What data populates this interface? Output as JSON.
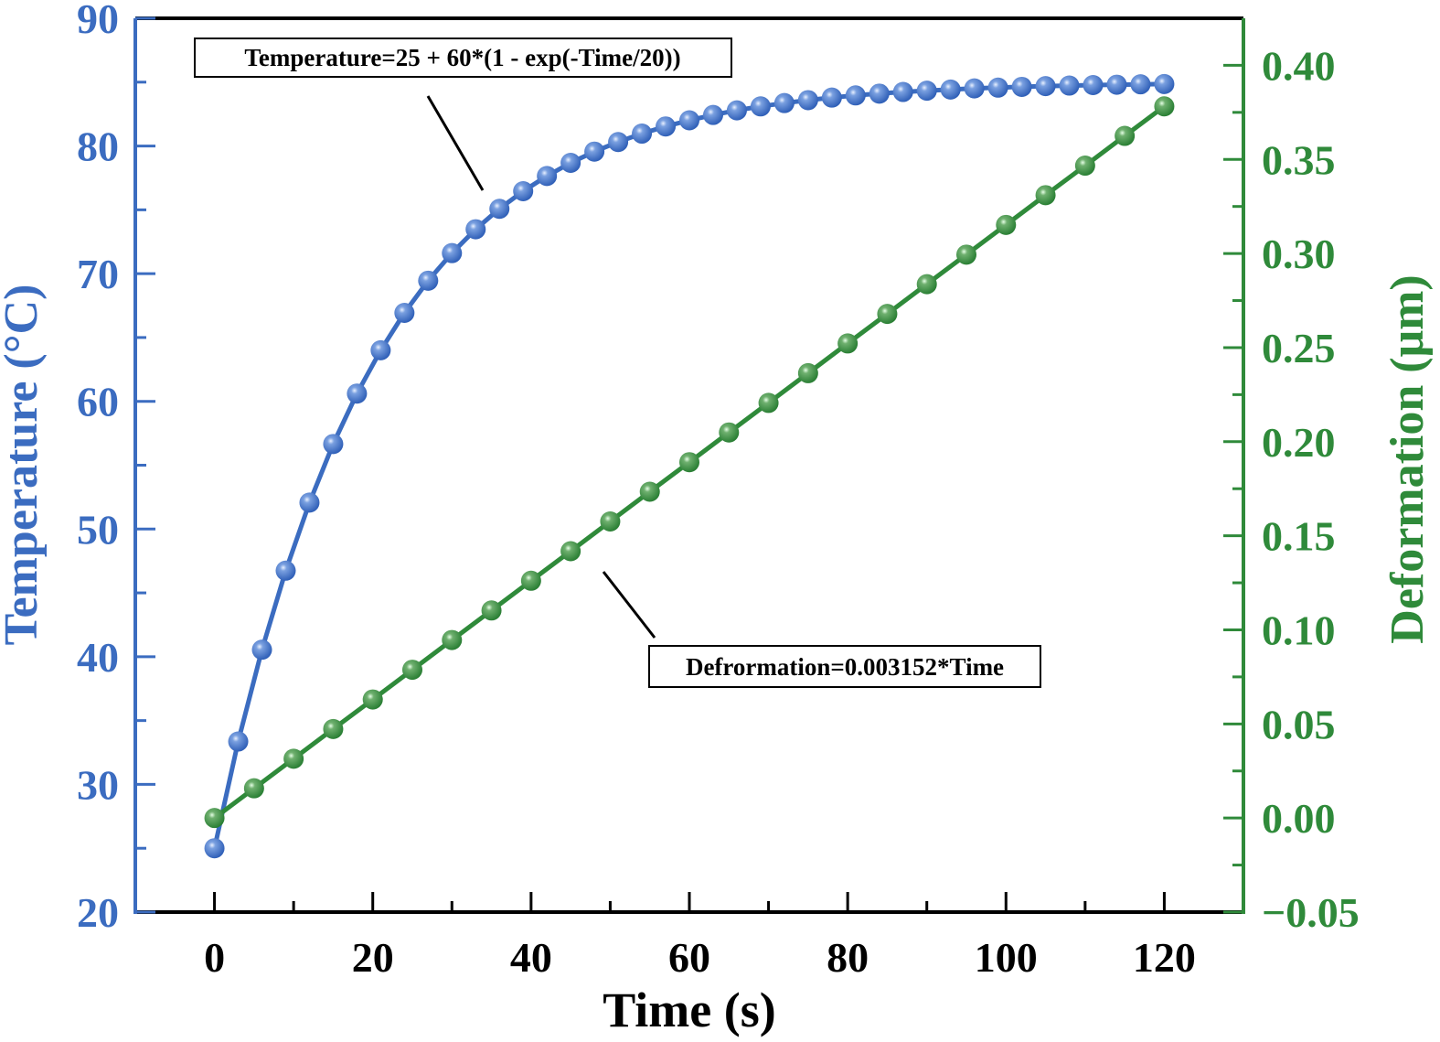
{
  "chart_data": {
    "type": "line",
    "xlabel": "Time (s)",
    "ylabel_left": "Temperature (°C)",
    "ylabel_right": "Deformation (μm)",
    "xlim": [
      -10,
      130
    ],
    "ylim_left": [
      20,
      90
    ],
    "ylim_right": [
      -0.05,
      0.425
    ],
    "x_ticks": [
      0,
      20,
      40,
      60,
      80,
      100,
      120
    ],
    "x_tick_labels": [
      "0",
      "20",
      "40",
      "60",
      "80",
      "100",
      "120"
    ],
    "y_left_ticks": [
      20,
      30,
      40,
      50,
      60,
      70,
      80,
      90
    ],
    "y_left_tick_labels": [
      "20",
      "30",
      "40",
      "50",
      "60",
      "70",
      "80",
      "90"
    ],
    "y_right_ticks": [
      -0.05,
      0.0,
      0.05,
      0.1,
      0.15,
      0.2,
      0.25,
      0.3,
      0.35,
      0.4
    ],
    "y_right_tick_labels": [
      "−0.05",
      "0.00",
      "0.05",
      "0.10",
      "0.15",
      "0.20",
      "0.25",
      "0.30",
      "0.35",
      "0.40"
    ],
    "grid": false,
    "colors": {
      "temperature": "#3b6cc0",
      "deformation": "#2f8a3a",
      "frame": "#000000"
    },
    "annotations": [
      {
        "text": "Temperature=25 + 60*(1 - exp(-Time/20))",
        "series": "temperature"
      },
      {
        "text": "Defrormation=0.003152*Time",
        "series": "deformation"
      }
    ],
    "series": [
      {
        "axis": "left",
        "x": [
          0,
          3,
          6,
          9,
          12,
          15,
          18,
          21,
          24,
          27,
          30,
          33,
          36,
          39,
          42,
          45,
          48,
          51,
          54,
          57,
          60,
          63,
          66,
          69,
          72,
          75,
          78,
          81,
          84,
          87,
          90,
          93,
          96,
          99,
          102,
          105,
          108,
          111,
          114,
          117,
          120
        ],
        "y": [
          25.0,
          33.36,
          40.55,
          46.74,
          52.07,
          56.66,
          60.61,
          64.0,
          66.93,
          69.45,
          71.61,
          73.48,
          75.08,
          76.46,
          77.65,
          78.68,
          79.56,
          80.31,
          80.97,
          81.53,
          82.01,
          82.43,
          82.79,
          83.1,
          83.36,
          83.59,
          83.79,
          83.96,
          84.1,
          84.23,
          84.33,
          84.42,
          84.51,
          84.57,
          84.63,
          84.69,
          84.73,
          84.77,
          84.8,
          84.83,
          84.85
        ]
      },
      {
        "axis": "right",
        "x": [
          0,
          5,
          10,
          15,
          20,
          25,
          30,
          35,
          40,
          45,
          50,
          55,
          60,
          65,
          70,
          75,
          80,
          85,
          90,
          95,
          100,
          105,
          110,
          115,
          120
        ],
        "y": [
          0.0,
          0.0158,
          0.0315,
          0.0473,
          0.063,
          0.0788,
          0.0946,
          0.1103,
          0.1261,
          0.1418,
          0.1576,
          0.1734,
          0.1891,
          0.2049,
          0.2206,
          0.2364,
          0.2522,
          0.2679,
          0.2837,
          0.2994,
          0.3152,
          0.331,
          0.3467,
          0.3625,
          0.3782
        ]
      }
    ]
  }
}
